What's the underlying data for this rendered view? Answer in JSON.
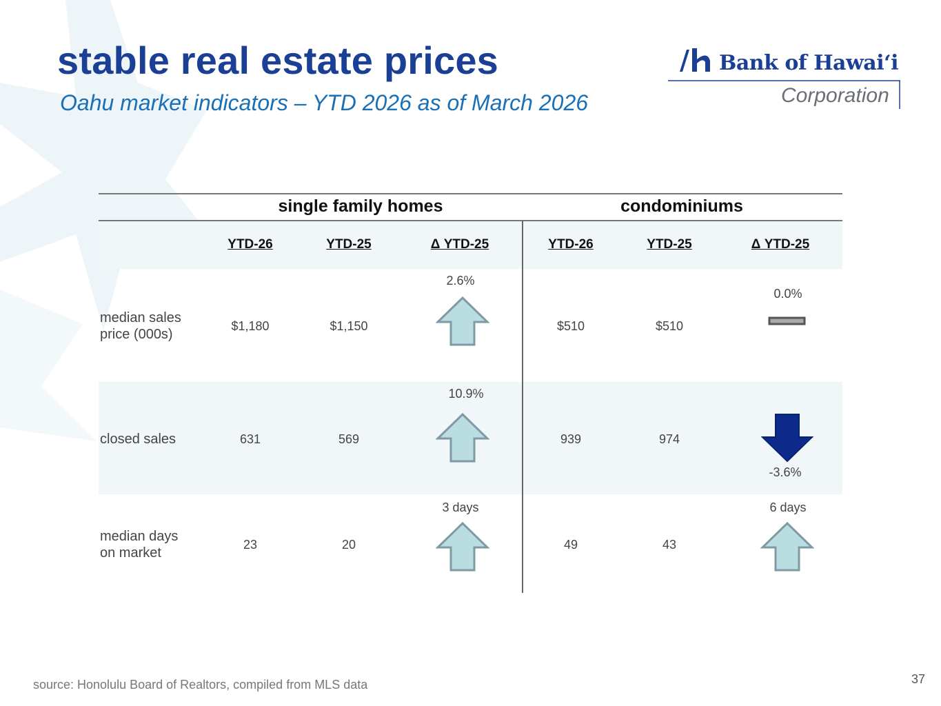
{
  "title": "stable real estate prices",
  "subtitle": "Oahu market indicators – YTD 2026 as of March 2026",
  "logo": {
    "name": "Bank of Hawaiʻi",
    "tagline": "Corporation"
  },
  "table": {
    "groups": [
      "single family homes",
      "condominiums"
    ],
    "columns": [
      "YTD-26",
      "YTD-25",
      "Δ YTD-25",
      "YTD-26",
      "YTD-25",
      "Δ YTD-25"
    ],
    "rows": [
      {
        "label_line1": "median sales",
        "label_line2": "price (000s)",
        "sfh_ytd26": "$1,180",
        "sfh_ytd25": "$1,150",
        "sfh_change": "2.6%",
        "sfh_direction": "up",
        "condo_ytd26": "$510",
        "condo_ytd25": "$510",
        "condo_change": "0.0%",
        "condo_direction": "flat"
      },
      {
        "label_line1": "closed sales",
        "label_line2": "",
        "sfh_ytd26": "631",
        "sfh_ytd25": "569",
        "sfh_change": "10.9%",
        "sfh_direction": "up",
        "condo_ytd26": "939",
        "condo_ytd25": "974",
        "condo_change": "-3.6%",
        "condo_direction": "down"
      },
      {
        "label_line1": "median days",
        "label_line2": "on market",
        "sfh_ytd26": "23",
        "sfh_ytd25": "20",
        "sfh_change": "3 days",
        "sfh_direction": "up",
        "condo_ytd26": "49",
        "condo_ytd25": "43",
        "condo_change": "6 days",
        "condo_direction": "up"
      }
    ]
  },
  "source": "source: Honolulu Board of Realtors, compiled from MLS data",
  "page_number": "37",
  "colors": {
    "title": "#1b3f94",
    "subtitle": "#1a6fb5",
    "arrow_up_fill": "#b9dde0",
    "arrow_up_stroke": "#7f9aa3",
    "arrow_down_fill": "#0b2a8a",
    "band": "#f1f7f8"
  }
}
